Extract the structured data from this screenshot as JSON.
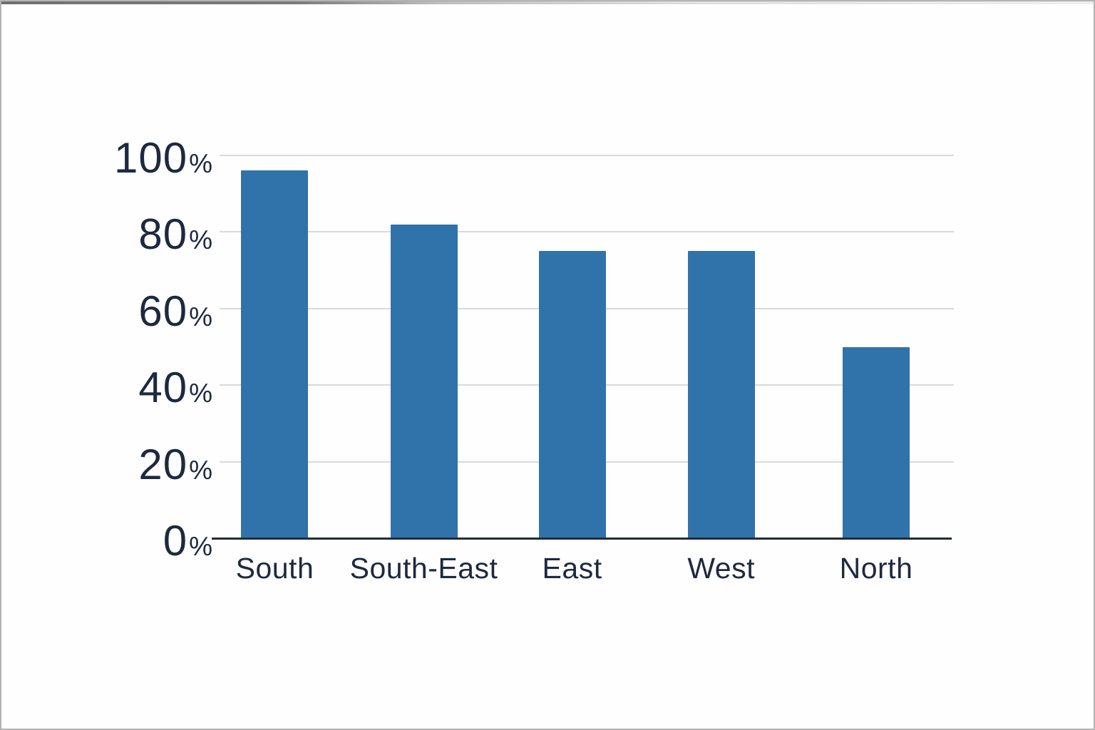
{
  "chart_data": {
    "type": "bar",
    "title": "",
    "xlabel": "",
    "ylabel": "",
    "categories": [
      "South",
      "South-East",
      "East",
      "West",
      "North"
    ],
    "values": [
      96,
      82,
      75,
      75,
      50
    ],
    "unit": "%",
    "y_ticks": [
      0,
      20,
      40,
      60,
      80,
      100
    ],
    "ylim": [
      0,
      100
    ],
    "grid": "horizontal",
    "legend": "none",
    "colors": {
      "bar": "#3073ab",
      "axis_text": "#1e2940",
      "gridline": "#dadada",
      "baseline": "#232b3d",
      "background": "#fefefe"
    }
  }
}
